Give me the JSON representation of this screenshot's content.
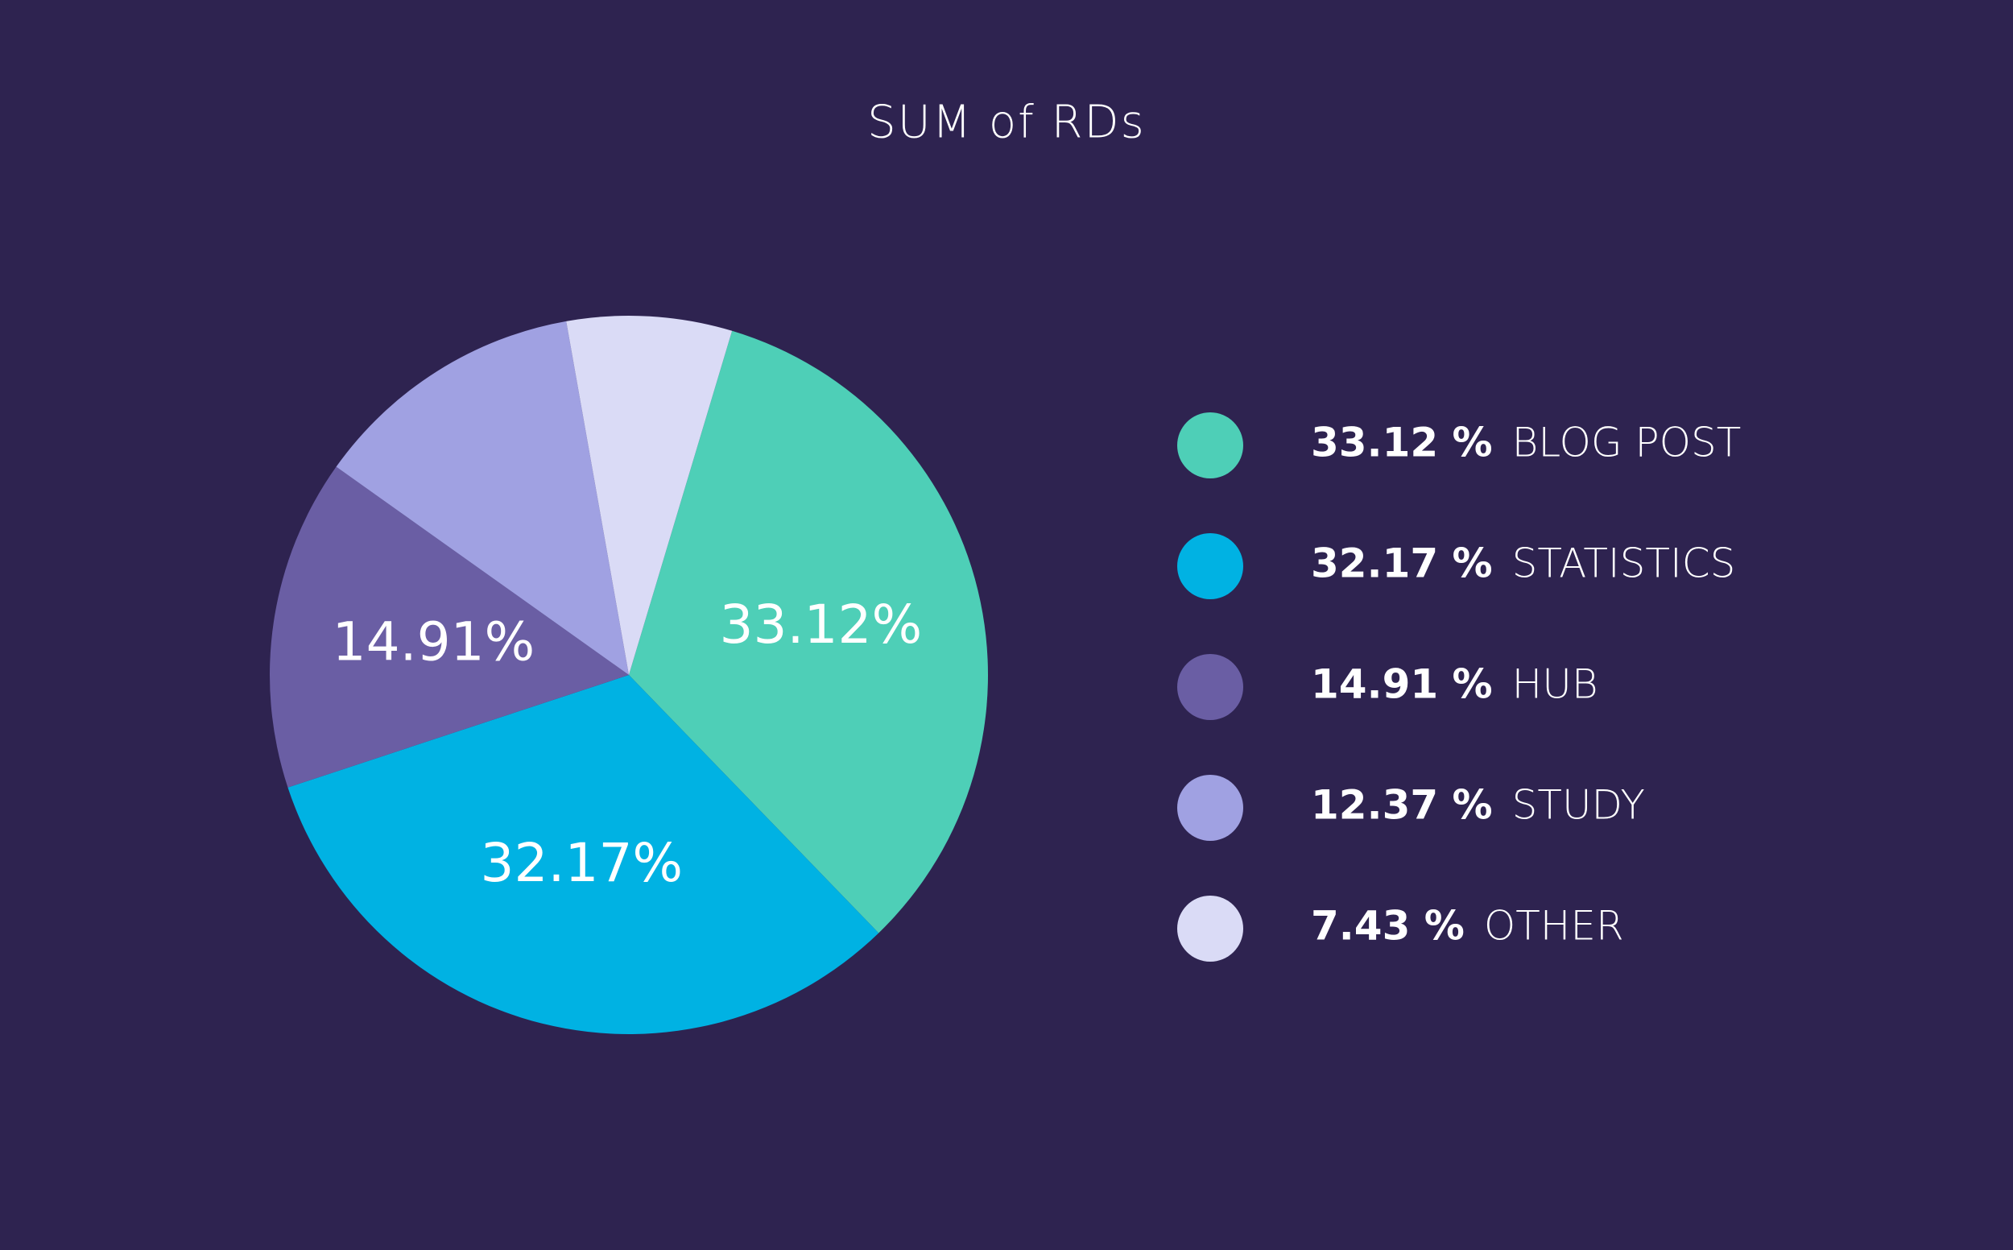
{
  "chart_data": {
    "type": "pie",
    "title": "SUM of RDs",
    "categories": [
      "BLOG POST",
      "STATISTICS",
      "HUB",
      "STUDY",
      "OTHER"
    ],
    "values": [
      33.12,
      32.17,
      14.91,
      12.37,
      7.43
    ],
    "value_labels": [
      "33.12%",
      "32.17%",
      "14.91%",
      null,
      null
    ],
    "legend_labels": [
      "33.12 %",
      "32.17 %",
      "14.91 %",
      "12.37 %",
      "7.43 %"
    ],
    "colors": [
      "#4ecfb7",
      "#00b2e3",
      "#6a5ea4",
      "#a0a1e2",
      "#dadbf6"
    ],
    "legend": "right"
  }
}
